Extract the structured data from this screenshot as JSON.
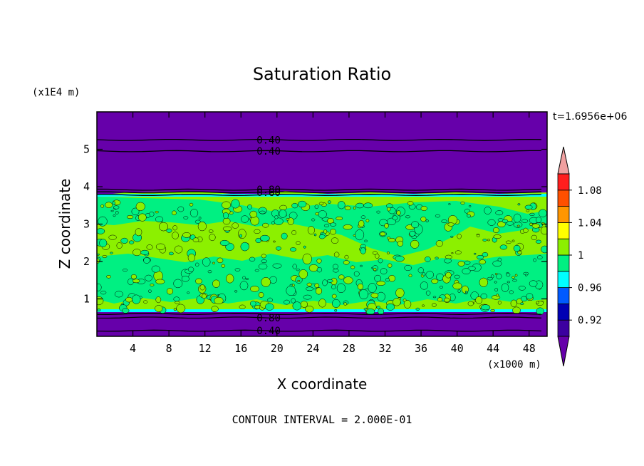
{
  "chart_data": {
    "type": "heatmap",
    "title": "Saturation Ratio",
    "xlabel": "X coordinate",
    "ylabel": "Z coordinate",
    "x_unit": "(x1000 m)",
    "y_unit": "(x1E4 m)",
    "time_label": "t=1.6956e+06",
    "footer": "CONTOUR INTERVAL = 2.000E-01",
    "xlim": [
      0,
      50
    ],
    "ylim": [
      0,
      6
    ],
    "x_ticks": [
      4,
      8,
      12,
      16,
      20,
      24,
      28,
      32,
      36,
      40,
      44,
      48
    ],
    "y_ticks": [
      1,
      2,
      3,
      4,
      5
    ],
    "contour_labels": [
      {
        "text": "0.40",
        "x": 17.5,
        "z": 5.25
      },
      {
        "text": "0.40",
        "x": 17.5,
        "z": 4.95
      },
      {
        "text": "0.80",
        "x": 17.5,
        "z": 3.92
      },
      {
        "text": "0.60",
        "x": 17.5,
        "z": 3.85
      },
      {
        "text": "0.80",
        "x": 17.5,
        "z": 0.5
      },
      {
        "text": "0.40",
        "x": 17.5,
        "z": 0.15
      }
    ],
    "colorbar": {
      "labels": [
        "0.92",
        "0.96",
        "1",
        "1.04",
        "1.08"
      ],
      "colors": [
        "#6600aa",
        "#3c00a0",
        "#0000b4",
        "#005aff",
        "#00ffff",
        "#00f082",
        "#8cf000",
        "#ffff00",
        "#ff9600",
        "#ff5000",
        "#ff1e1e",
        "#f0a0a0"
      ],
      "over_color": "#f0a0a0",
      "under_color": "#6600aa"
    },
    "regions": [
      {
        "value": "< 0.90",
        "color": "#6600aa",
        "z_range": [
          3.8,
          6.0
        ]
      },
      {
        "value": "1.00-1.02",
        "color": "#8cf000",
        "z_range": [
          0.6,
          3.8
        ]
      },
      {
        "value": "< 0.90",
        "color": "#6600aa",
        "z_range": [
          0.0,
          0.6
        ]
      }
    ]
  }
}
